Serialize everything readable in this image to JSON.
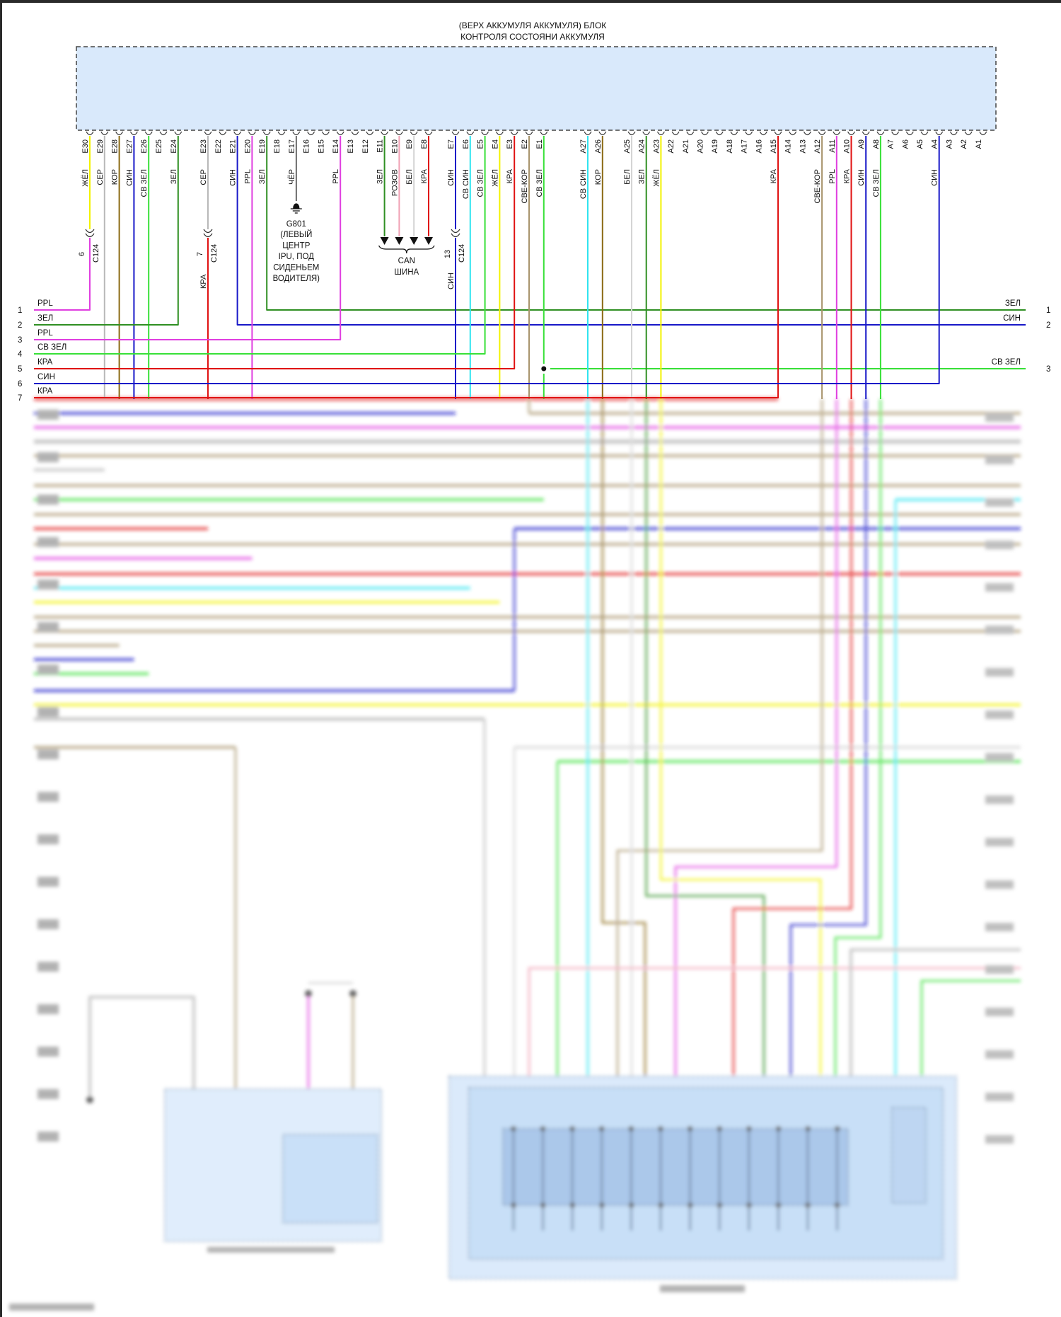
{
  "title": {
    "line1": "(ВЕРХ АККУМУЛЯ АККУМУЛЯ) БЛОК",
    "line2": "КОНТРОЛЯ СОСТОЯНИ АККУМУЛЯ"
  },
  "colors": {
    "yellow": "#f2f200",
    "grey": "#b8b8b8",
    "brown": "#8b6a14",
    "blue": "#1818c8",
    "lgreen": "#38e038",
    "green": "#2f8f22",
    "magenta": "#e03ee0",
    "red": "#e01212",
    "pink": "#f0a0b4",
    "white": "#d4d4d4",
    "black": "#333333",
    "cyan": "#30e4f0",
    "tan": "#a8946c",
    "box_fill": "#d9e9fb",
    "box_border": "#444444"
  },
  "pins": [
    {
      "pin": "E30",
      "wire": "ЖЁЛ",
      "color": "yellow"
    },
    {
      "pin": "E29",
      "wire": "СЕР",
      "color": "grey"
    },
    {
      "pin": "E28",
      "wire": "КОР",
      "color": "brown"
    },
    {
      "pin": "E27",
      "wire": "СИН",
      "color": "blue"
    },
    {
      "pin": "E26",
      "wire": "СВ ЗЕЛ",
      "color": "lgreen"
    },
    {
      "pin": "E25",
      "wire": "",
      "color": ""
    },
    {
      "pin": "E24",
      "wire": "ЗЕЛ",
      "color": "green"
    },
    {
      "pin": "E23",
      "wire": "СЕР",
      "color": "grey"
    },
    {
      "pin": "E22",
      "wire": "",
      "color": ""
    },
    {
      "pin": "E21",
      "wire": "СИН",
      "color": "blue"
    },
    {
      "pin": "E20",
      "wire": "PPL",
      "color": "magenta"
    },
    {
      "pin": "E19",
      "wire": "ЗЕЛ",
      "color": "green"
    },
    {
      "pin": "E18",
      "wire": "",
      "color": ""
    },
    {
      "pin": "E17",
      "wire": "ЧЁР",
      "color": "black"
    },
    {
      "pin": "E16",
      "wire": "",
      "color": ""
    },
    {
      "pin": "E15",
      "wire": "",
      "color": ""
    },
    {
      "pin": "E14",
      "wire": "PPL",
      "color": "magenta"
    },
    {
      "pin": "E13",
      "wire": "",
      "color": ""
    },
    {
      "pin": "E12",
      "wire": "",
      "color": ""
    },
    {
      "pin": "E11",
      "wire": "ЗЕЛ",
      "color": "green"
    },
    {
      "pin": "E10",
      "wire": "РОЗОВ",
      "color": "pink"
    },
    {
      "pin": "E9",
      "wire": "БЕЛ",
      "color": "white"
    },
    {
      "pin": "E8",
      "wire": "КРА",
      "color": "red"
    },
    {
      "pin": "E7",
      "wire": "СИН",
      "color": "blue"
    },
    {
      "pin": "E6",
      "wire": "СВ СИН",
      "color": "cyan"
    },
    {
      "pin": "E5",
      "wire": "СВ ЗЕЛ",
      "color": "lgreen"
    },
    {
      "pin": "E4",
      "wire": "ЖЁЛ",
      "color": "yellow"
    },
    {
      "pin": "E3",
      "wire": "КРА",
      "color": "red"
    },
    {
      "pin": "E2",
      "wire": "СВЕ-КОР",
      "color": "tan"
    },
    {
      "pin": "E1",
      "wire": "СВ ЗЕЛ",
      "color": "lgreen"
    },
    {
      "pin": "A27",
      "wire": "СВ СИН",
      "color": "cyan"
    },
    {
      "pin": "A26",
      "wire": "КОР",
      "color": "brown"
    },
    {
      "pin": "A25",
      "wire": "БЕЛ",
      "color": "white"
    },
    {
      "pin": "A24",
      "wire": "ЗЕЛ",
      "color": "green"
    },
    {
      "pin": "A23",
      "wire": "ЖЁЛ",
      "color": "yellow"
    },
    {
      "pin": "A22",
      "wire": "",
      "color": ""
    },
    {
      "pin": "A21",
      "wire": "",
      "color": ""
    },
    {
      "pin": "A20",
      "wire": "",
      "color": ""
    },
    {
      "pin": "A19",
      "wire": "",
      "color": ""
    },
    {
      "pin": "A18",
      "wire": "",
      "color": ""
    },
    {
      "pin": "A17",
      "wire": "",
      "color": ""
    },
    {
      "pin": "A16",
      "wire": "",
      "color": ""
    },
    {
      "pin": "A15",
      "wire": "КРА",
      "color": "red"
    },
    {
      "pin": "A14",
      "wire": "",
      "color": ""
    },
    {
      "pin": "A13",
      "wire": "",
      "color": ""
    },
    {
      "pin": "A12",
      "wire": "СВЕ-КОР",
      "color": "tan"
    },
    {
      "pin": "A11",
      "wire": "PPL",
      "color": "magenta"
    },
    {
      "pin": "A10",
      "wire": "КРА",
      "color": "red"
    },
    {
      "pin": "A9",
      "wire": "СИН",
      "color": "blue"
    },
    {
      "pin": "A8",
      "wire": "СВ ЗЕЛ",
      "color": "lgreen"
    },
    {
      "pin": "A7",
      "wire": "",
      "color": ""
    },
    {
      "pin": "A6",
      "wire": "",
      "color": ""
    },
    {
      "pin": "A5",
      "wire": "",
      "color": ""
    },
    {
      "pin": "A4",
      "wire": "СИН",
      "color": "blue"
    },
    {
      "pin": "A3",
      "wire": "",
      "color": ""
    },
    {
      "pin": "A2",
      "wire": "",
      "color": ""
    },
    {
      "pin": "A1",
      "wire": "",
      "color": ""
    }
  ],
  "connectors": [
    {
      "name": "C124",
      "pin": "6",
      "after_wire": "PPL",
      "after_color": "magenta"
    },
    {
      "name": "C124",
      "pin": "7",
      "after_wire": "КРА",
      "after_color": "red"
    },
    {
      "name": "C124",
      "pin": "13",
      "after_wire": "СИН",
      "after_color": "blue"
    }
  ],
  "ground": {
    "id": "G801",
    "lines": [
      "(ЛЕВЫЙ",
      "ЦЕНТР",
      "IPU, ПОД",
      "СИДЕНЬЕМ",
      "ВОДИТЕЛЯ)"
    ]
  },
  "can_bus": {
    "line1": "CAN",
    "line2": "ШИНА"
  },
  "left_rows": [
    {
      "num": "1",
      "label": "PPL",
      "color": "magenta"
    },
    {
      "num": "2",
      "label": "ЗЕЛ",
      "color": "green"
    },
    {
      "num": "3",
      "label": "PPL",
      "color": "magenta"
    },
    {
      "num": "4",
      "label": "СВ ЗЕЛ",
      "color": "lgreen"
    },
    {
      "num": "5",
      "label": "КРА",
      "color": "red"
    },
    {
      "num": "6",
      "label": "СИН",
      "color": "blue"
    },
    {
      "num": "7",
      "label": "КРА",
      "color": "red"
    }
  ],
  "right_rows": [
    {
      "num": "1",
      "label": "ЗЕЛ",
      "color": "green"
    },
    {
      "num": "2",
      "label": "СИН",
      "color": "blue"
    },
    {
      "num": "3",
      "label": "СВ ЗЕЛ",
      "color": "lgreen"
    }
  ]
}
